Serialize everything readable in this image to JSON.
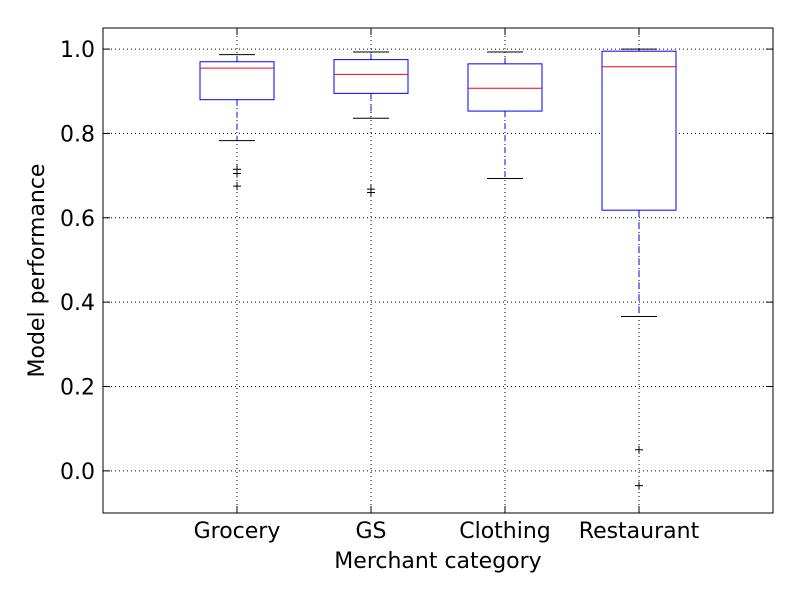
{
  "chart_data": {
    "type": "box",
    "xlabel": "Merchant category",
    "ylabel": "Model performance",
    "ylim": [
      -0.1,
      1.05
    ],
    "yticks": [
      0.0,
      0.2,
      0.4,
      0.6,
      0.8,
      1.0
    ],
    "ytick_labels": [
      "0.0",
      "0.2",
      "0.4",
      "0.6",
      "0.8",
      "1.0"
    ],
    "grid": true,
    "categories": [
      "Grocery",
      "GS",
      "Clothing",
      "Restaurant"
    ],
    "boxes": [
      {
        "category": "Grocery",
        "whisker_low": 0.783,
        "q1": 0.88,
        "median": 0.955,
        "q3": 0.97,
        "whisker_high": 0.987,
        "outliers": [
          0.675,
          0.705,
          0.715
        ]
      },
      {
        "category": "GS",
        "whisker_low": 0.836,
        "q1": 0.895,
        "median": 0.94,
        "q3": 0.975,
        "whisker_high": 0.993,
        "outliers": [
          0.66,
          0.668
        ]
      },
      {
        "category": "Clothing",
        "whisker_low": 0.693,
        "q1": 0.853,
        "median": 0.907,
        "q3": 0.965,
        "whisker_high": 0.993,
        "outliers": []
      },
      {
        "category": "Restaurant",
        "whisker_low": 0.366,
        "q1": 0.618,
        "median": 0.958,
        "q3": 0.995,
        "whisker_high": 1.0,
        "outliers": [
          0.05,
          -0.035
        ]
      }
    ],
    "colors": {
      "box": "#0000ff",
      "median": "#ff0000",
      "whisker": "#0000ff",
      "cap": "#000000",
      "outlier": "#000000",
      "grid": "#000000"
    }
  }
}
